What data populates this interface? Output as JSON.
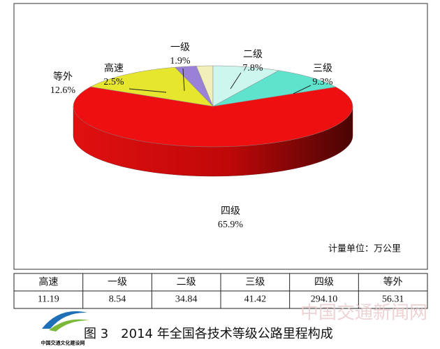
{
  "chart_data": {
    "type": "pie3d",
    "categories": [
      "高速",
      "一级",
      "二级",
      "三级",
      "四级",
      "等外"
    ],
    "values": [
      2.5,
      1.9,
      7.8,
      9.3,
      65.9,
      12.6
    ],
    "value_labels": [
      "2.5%",
      "1.9%",
      "7.8%",
      "9.3%",
      "65.9%",
      "12.6%"
    ],
    "colors": [
      "#9b80d8",
      "#f2f0b8",
      "#cdf6ee",
      "#5fe3cc",
      "#ee1010",
      "#e6e62e"
    ],
    "unit_note": "计量单位：万公里"
  },
  "table": {
    "values": [
      "11.19",
      "8.54",
      "34.84",
      "41.42",
      "294.10",
      "56.31"
    ]
  },
  "caption": "图 3　2014 年全国各技术等级公路里程构成",
  "logo_text": "中国交通文化建设网",
  "watermark": "中国交通新闻网"
}
